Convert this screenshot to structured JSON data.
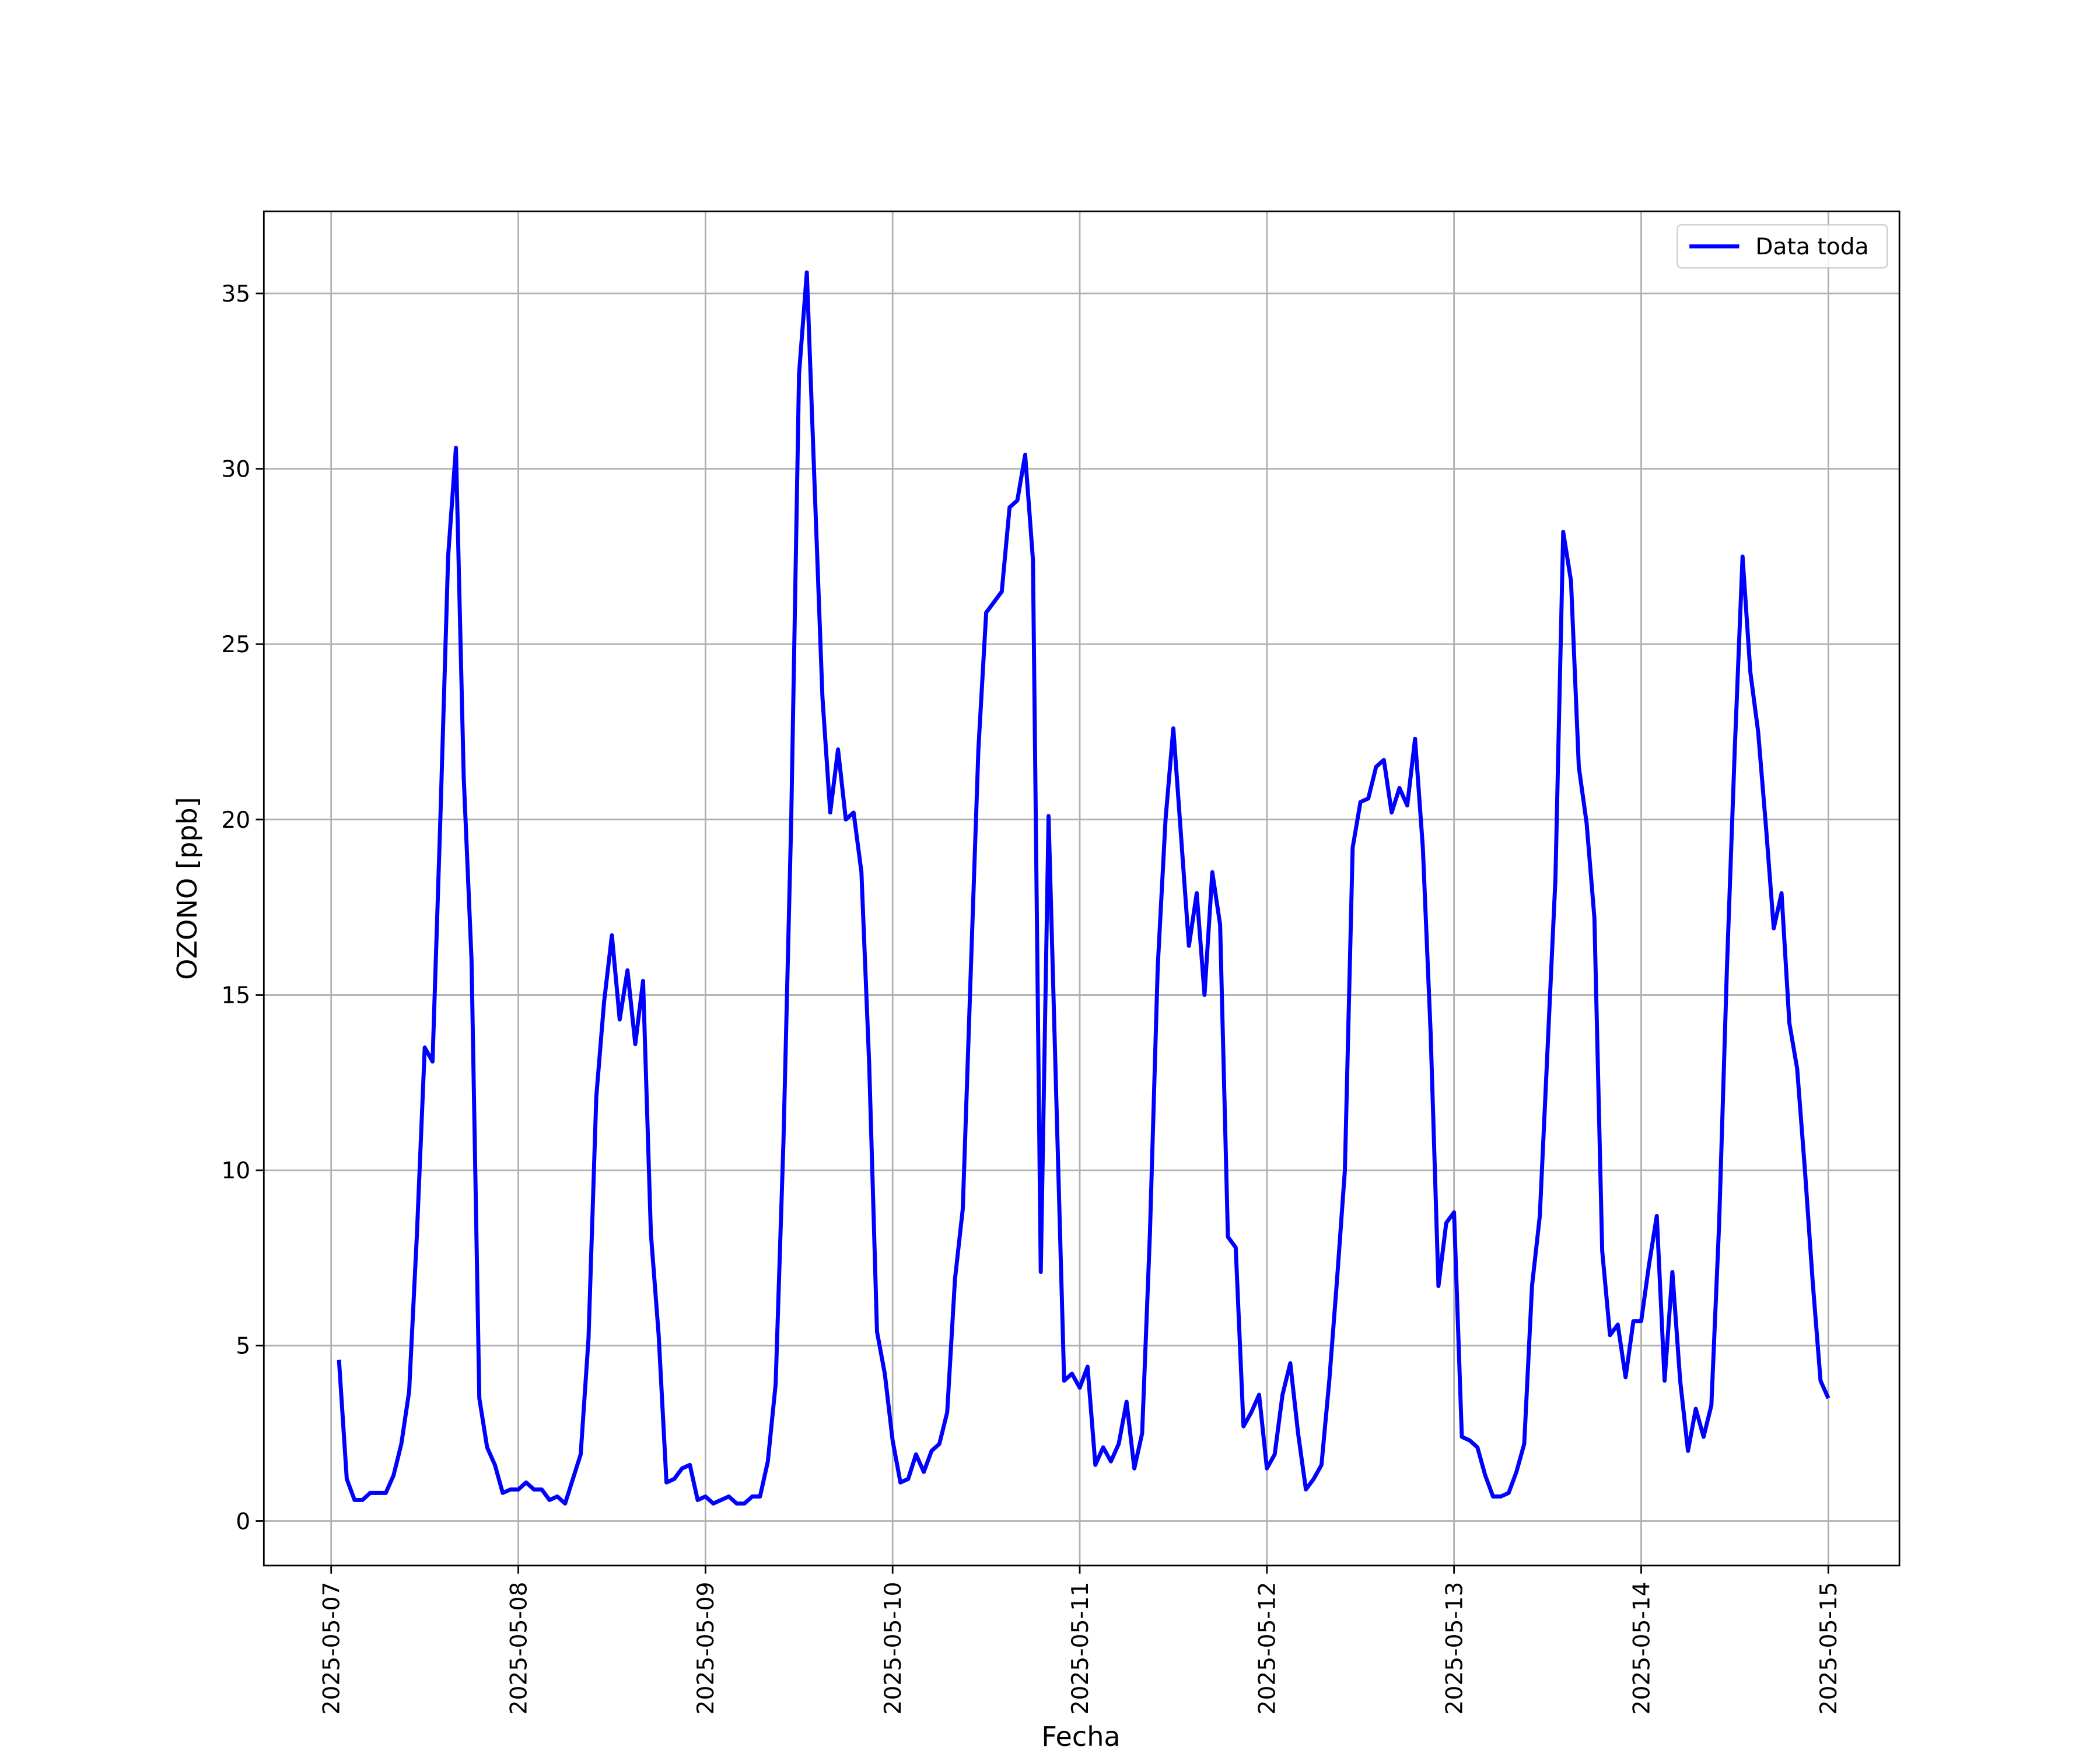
{
  "chart_data": {
    "type": "line",
    "xlabel": "Fecha",
    "ylabel": "OZONO [ppb]",
    "x": [
      "2025-05-07 01:00",
      "2025-05-07 02:00",
      "2025-05-07 03:00",
      "2025-05-07 04:00",
      "2025-05-07 05:00",
      "2025-05-07 06:00",
      "2025-05-07 07:00",
      "2025-05-07 08:00",
      "2025-05-07 09:00",
      "2025-05-07 10:00",
      "2025-05-07 11:00",
      "2025-05-07 12:00",
      "2025-05-07 13:00",
      "2025-05-07 14:00",
      "2025-05-07 15:00",
      "2025-05-07 16:00",
      "2025-05-07 17:00",
      "2025-05-07 18:00",
      "2025-05-07 19:00",
      "2025-05-07 20:00",
      "2025-05-07 21:00",
      "2025-05-07 22:00",
      "2025-05-07 23:00",
      "2025-05-08 00:00",
      "2025-05-08 01:00",
      "2025-05-08 02:00",
      "2025-05-08 03:00",
      "2025-05-08 04:00",
      "2025-05-08 05:00",
      "2025-05-08 06:00",
      "2025-05-08 07:00",
      "2025-05-08 08:00",
      "2025-05-08 09:00",
      "2025-05-08 10:00",
      "2025-05-08 11:00",
      "2025-05-08 12:00",
      "2025-05-08 13:00",
      "2025-05-08 14:00",
      "2025-05-08 15:00",
      "2025-05-08 16:00",
      "2025-05-08 17:00",
      "2025-05-08 18:00",
      "2025-05-08 19:00",
      "2025-05-08 20:00",
      "2025-05-08 21:00",
      "2025-05-08 22:00",
      "2025-05-08 23:00",
      "2025-05-09 00:00",
      "2025-05-09 01:00",
      "2025-05-09 02:00",
      "2025-05-09 03:00",
      "2025-05-09 04:00",
      "2025-05-09 05:00",
      "2025-05-09 06:00",
      "2025-05-09 07:00",
      "2025-05-09 08:00",
      "2025-05-09 09:00",
      "2025-05-09 10:00",
      "2025-05-09 11:00",
      "2025-05-09 12:00",
      "2025-05-09 13:00",
      "2025-05-09 14:00",
      "2025-05-09 15:00",
      "2025-05-09 16:00",
      "2025-05-09 17:00",
      "2025-05-09 18:00",
      "2025-05-09 19:00",
      "2025-05-09 20:00",
      "2025-05-09 21:00",
      "2025-05-09 22:00",
      "2025-05-09 23:00",
      "2025-05-10 00:00",
      "2025-05-10 01:00",
      "2025-05-10 02:00",
      "2025-05-10 03:00",
      "2025-05-10 04:00",
      "2025-05-10 05:00",
      "2025-05-10 06:00",
      "2025-05-10 07:00",
      "2025-05-10 08:00",
      "2025-05-10 09:00",
      "2025-05-10 10:00",
      "2025-05-10 11:00",
      "2025-05-10 12:00",
      "2025-05-10 13:00",
      "2025-05-10 14:00",
      "2025-05-10 15:00",
      "2025-05-10 16:00",
      "2025-05-10 17:00",
      "2025-05-10 18:00",
      "2025-05-10 19:00",
      "2025-05-10 20:00",
      "2025-05-10 21:00",
      "2025-05-10 22:00",
      "2025-05-10 23:00",
      "2025-05-11 00:00",
      "2025-05-11 01:00",
      "2025-05-11 02:00",
      "2025-05-11 03:00",
      "2025-05-11 04:00",
      "2025-05-11 05:00",
      "2025-05-11 06:00",
      "2025-05-11 07:00",
      "2025-05-11 08:00",
      "2025-05-11 09:00",
      "2025-05-11 10:00",
      "2025-05-11 11:00",
      "2025-05-11 12:00",
      "2025-05-11 13:00",
      "2025-05-11 14:00",
      "2025-05-11 15:00",
      "2025-05-11 16:00",
      "2025-05-11 17:00",
      "2025-05-11 18:00",
      "2025-05-11 19:00",
      "2025-05-11 20:00",
      "2025-05-11 21:00",
      "2025-05-11 22:00",
      "2025-05-11 23:00",
      "2025-05-12 00:00",
      "2025-05-12 01:00",
      "2025-05-12 02:00",
      "2025-05-12 03:00",
      "2025-05-12 04:00",
      "2025-05-12 05:00",
      "2025-05-12 06:00",
      "2025-05-12 07:00",
      "2025-05-12 08:00",
      "2025-05-12 09:00",
      "2025-05-12 10:00",
      "2025-05-12 11:00",
      "2025-05-12 12:00",
      "2025-05-12 13:00",
      "2025-05-12 14:00",
      "2025-05-12 15:00",
      "2025-05-12 16:00",
      "2025-05-12 17:00",
      "2025-05-12 18:00",
      "2025-05-12 19:00",
      "2025-05-12 20:00",
      "2025-05-12 21:00",
      "2025-05-12 22:00",
      "2025-05-12 23:00",
      "2025-05-13 00:00",
      "2025-05-13 01:00",
      "2025-05-13 02:00",
      "2025-05-13 03:00",
      "2025-05-13 04:00",
      "2025-05-13 05:00",
      "2025-05-13 06:00",
      "2025-05-13 07:00",
      "2025-05-13 08:00",
      "2025-05-13 09:00",
      "2025-05-13 10:00",
      "2025-05-13 11:00",
      "2025-05-13 12:00",
      "2025-05-13 13:00",
      "2025-05-13 14:00",
      "2025-05-13 15:00",
      "2025-05-13 16:00",
      "2025-05-13 17:00",
      "2025-05-13 18:00",
      "2025-05-13 19:00",
      "2025-05-13 20:00",
      "2025-05-13 21:00",
      "2025-05-13 22:00",
      "2025-05-13 23:00",
      "2025-05-14 00:00",
      "2025-05-14 01:00",
      "2025-05-14 02:00",
      "2025-05-14 03:00",
      "2025-05-14 04:00",
      "2025-05-14 05:00",
      "2025-05-14 06:00",
      "2025-05-14 07:00",
      "2025-05-14 08:00",
      "2025-05-14 09:00",
      "2025-05-14 10:00",
      "2025-05-14 11:00",
      "2025-05-14 12:00",
      "2025-05-14 13:00",
      "2025-05-14 14:00",
      "2025-05-14 15:00",
      "2025-05-14 16:00",
      "2025-05-14 17:00",
      "2025-05-14 18:00",
      "2025-05-14 19:00",
      "2025-05-14 20:00",
      "2025-05-14 21:00",
      "2025-05-14 22:00",
      "2025-05-14 23:00",
      "2025-05-15 00:00"
    ],
    "series": [
      {
        "name": "Data toda",
        "color": "#0000ff",
        "values": [
          4.6,
          1.2,
          0.6,
          0.6,
          0.8,
          0.8,
          0.8,
          1.3,
          2.2,
          3.7,
          8.2,
          13.5,
          13.1,
          20,
          27.5,
          30.6,
          21.2,
          16,
          3.5,
          2.1,
          1.6,
          0.8,
          0.9,
          0.9,
          1.1,
          0.9,
          0.9,
          0.6,
          0.7,
          0.5,
          1.2,
          1.9,
          5.2,
          12.1,
          14.8,
          16.7,
          14.3,
          15.7,
          13.6,
          15.4,
          8.2,
          5.3,
          1.1,
          1.2,
          1.5,
          1.6,
          0.6,
          0.7,
          0.5,
          0.6,
          0.7,
          0.5,
          0.5,
          0.7,
          0.7,
          1.7,
          3.9,
          10.8,
          20,
          32.7,
          35.6,
          29.5,
          23.5,
          20.2,
          22,
          20,
          20.2,
          18.5,
          13,
          5.4,
          4.2,
          2.3,
          1.1,
          1.2,
          1.9,
          1.4,
          2,
          2.2,
          3.1,
          6.9,
          8.9,
          15.5,
          22,
          25.9,
          26.2,
          26.5,
          28.9,
          29.1,
          30.4,
          27.4,
          7.1,
          20.1,
          12,
          4,
          4.2,
          3.8,
          4.4,
          1.6,
          2.1,
          1.7,
          2.2,
          3.4,
          1.5,
          2.5,
          8.2,
          15.8,
          20,
          22.6,
          19.5,
          16.4,
          17.9,
          15,
          18.5,
          17,
          8.1,
          7.8,
          2.7,
          3.1,
          3.6,
          1.5,
          1.9,
          3.6,
          4.5,
          2.5,
          0.9,
          1.2,
          1.6,
          4,
          6.9,
          10,
          19.2,
          20.5,
          20.6,
          21.5,
          21.7,
          20.2,
          20.9,
          20.4,
          22.3,
          19.2,
          13.9,
          6.7,
          8.5,
          8.8,
          2.4,
          2.3,
          2.1,
          1.3,
          0.7,
          0.7,
          0.8,
          1.4,
          2.2,
          6.7,
          8.7,
          13.5,
          18.3,
          28.2,
          26.8,
          21.5,
          19.9,
          17.2,
          7.7,
          5.3,
          5.6,
          4.1,
          5.7,
          5.7,
          7.3,
          8.7,
          4,
          7.1,
          4,
          2,
          3.2,
          2.4,
          3.3,
          8.5,
          15.8,
          22,
          27.5,
          24.2,
          22.5,
          19.8,
          16.9,
          17.9,
          14.2,
          12.9,
          10,
          6.8,
          4,
          3.5
        ]
      }
    ],
    "xlim": [
      "2025-05-06 15:22",
      "2025-05-15 09:07"
    ],
    "xticks": [
      "2025-05-07",
      "2025-05-08",
      "2025-05-09",
      "2025-05-10",
      "2025-05-11",
      "2025-05-12",
      "2025-05-13",
      "2025-05-14",
      "2025-05-15"
    ],
    "ylim": [
      -1.27,
      37.34
    ],
    "yticks": [
      0,
      5,
      10,
      15,
      20,
      25,
      30,
      35
    ],
    "grid": true,
    "legend": "upper right"
  }
}
